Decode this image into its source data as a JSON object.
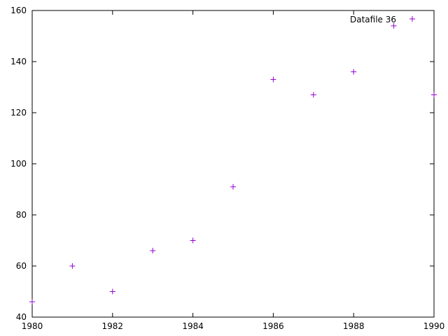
{
  "chart_data": {
    "type": "scatter",
    "title": "",
    "xlabel": "",
    "ylabel": "",
    "xlim": [
      1980,
      1990
    ],
    "ylim": [
      40,
      160
    ],
    "x_ticks": [
      1980,
      1982,
      1984,
      1986,
      1988,
      1990
    ],
    "y_ticks": [
      40,
      60,
      80,
      100,
      120,
      140,
      160
    ],
    "grid": false,
    "legend_position": "top-right",
    "series": [
      {
        "name": "Datafile 36",
        "color": "#9400d3",
        "marker": "plus",
        "x": [
          1980,
          1981,
          1982,
          1983,
          1984,
          1985,
          1986,
          1987,
          1988,
          1989,
          1990
        ],
        "y": [
          46,
          60,
          50,
          66,
          70,
          91,
          133,
          127,
          136,
          154,
          127
        ]
      }
    ],
    "legend_sample_color": "#9400d3"
  }
}
